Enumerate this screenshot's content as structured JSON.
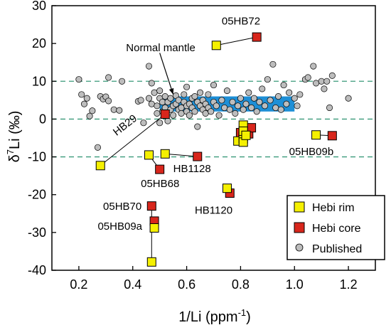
{
  "chart_data": {
    "type": "scatter",
    "xlabel_main": "1/Li (ppm",
    "xlabel_sup": "-1",
    "xlabel_end": ")",
    "ylabel_delta": "δ",
    "ylabel_sup": "7",
    "ylabel_rest": "Li (‰)",
    "xlim": [
      0.1,
      1.3
    ],
    "ylim": [
      -40,
      30
    ],
    "xticks": [
      0.2,
      0.4,
      0.6,
      0.8,
      1.0,
      1.2
    ],
    "xtick_labels": [
      "0.2",
      "0.4",
      "0.6",
      "0.8",
      "1.0",
      "1.2"
    ],
    "yticks": [
      -40,
      -30,
      -20,
      -10,
      0,
      10,
      20,
      30
    ],
    "ytick_labels": [
      "-40",
      "-30",
      "-20",
      "-10",
      "0",
      "10",
      "20",
      "30"
    ],
    "reference_lines_y": [
      10,
      0,
      -10
    ],
    "normal_mantle_band": {
      "x": [
        0.5,
        1.0
      ],
      "y": [
        2,
        6
      ],
      "label": "Normal mantle",
      "color": "#1e8fd6"
    },
    "legend": {
      "placement": "bottom-right",
      "entries": [
        {
          "label": "Hebi rim",
          "marker": "square",
          "color": "#f5f000"
        },
        {
          "label": "Hebi core",
          "marker": "square",
          "color": "#d8261c"
        },
        {
          "label": "Published",
          "marker": "circle",
          "color": "#bdbdbd"
        }
      ]
    },
    "series": [
      {
        "name": "Hebi rim",
        "marker": "square",
        "color": "#f5f000",
        "points": [
          {
            "x": 0.71,
            "y": 19.5
          },
          {
            "x": 0.28,
            "y": -12.3
          },
          {
            "x": 0.46,
            "y": -9.5
          },
          {
            "x": 0.52,
            "y": -9.2
          },
          {
            "x": 0.79,
            "y": -5.8
          },
          {
            "x": 0.81,
            "y": -5.2
          },
          {
            "x": 0.81,
            "y": -6.1
          },
          {
            "x": 0.81,
            "y": -1.6
          },
          {
            "x": 0.81,
            "y": -3.2
          },
          {
            "x": 0.82,
            "y": -4.3
          },
          {
            "x": 1.08,
            "y": -4.2
          },
          {
            "x": 0.75,
            "y": -18.3
          },
          {
            "x": 0.48,
            "y": -28.8
          },
          {
            "x": 0.47,
            "y": -37.8
          }
        ]
      },
      {
        "name": "Hebi core",
        "marker": "square",
        "color": "#d8261c",
        "points": [
          {
            "x": 0.86,
            "y": 21.7
          },
          {
            "x": 0.52,
            "y": 1.3
          },
          {
            "x": 0.64,
            "y": -9.9
          },
          {
            "x": 0.5,
            "y": -13.3
          },
          {
            "x": 0.8,
            "y": -3.6
          },
          {
            "x": 0.81,
            "y": -4.5
          },
          {
            "x": 0.83,
            "y": -3.9
          },
          {
            "x": 0.84,
            "y": -2.3
          },
          {
            "x": 1.14,
            "y": -4.4
          },
          {
            "x": 0.76,
            "y": -19.6
          },
          {
            "x": 0.47,
            "y": -23.0
          },
          {
            "x": 0.48,
            "y": -27.0
          }
        ]
      },
      {
        "name": "Published",
        "marker": "circle",
        "color": "#bdbdbd",
        "points": [
          {
            "x": 0.2,
            "y": 10.5
          },
          {
            "x": 0.21,
            "y": 6.5
          },
          {
            "x": 0.22,
            "y": 4.0
          },
          {
            "x": 0.23,
            "y": 5.5
          },
          {
            "x": 0.24,
            "y": 0.8
          },
          {
            "x": 0.25,
            "y": 2.2
          },
          {
            "x": 0.27,
            "y": -7.5
          },
          {
            "x": 0.28,
            "y": 6.0
          },
          {
            "x": 0.29,
            "y": 5.3
          },
          {
            "x": 0.3,
            "y": 5.9
          },
          {
            "x": 0.31,
            "y": 11.0
          },
          {
            "x": 0.31,
            "y": 4.8
          },
          {
            "x": 0.33,
            "y": 2.5
          },
          {
            "x": 0.35,
            "y": 2.3
          },
          {
            "x": 0.36,
            "y": 10.0
          },
          {
            "x": 0.42,
            "y": 4.7
          },
          {
            "x": 0.43,
            "y": 5.0
          },
          {
            "x": 0.44,
            "y": -1.0
          },
          {
            "x": 0.46,
            "y": 14.0
          },
          {
            "x": 0.46,
            "y": 5.5
          },
          {
            "x": 0.47,
            "y": 4.0
          },
          {
            "x": 0.47,
            "y": 9.5
          },
          {
            "x": 0.48,
            "y": 7.0
          },
          {
            "x": 0.49,
            "y": 3.5
          },
          {
            "x": 0.49,
            "y": 1.5
          },
          {
            "x": 0.5,
            "y": 5.5
          },
          {
            "x": 0.5,
            "y": 7.5
          },
          {
            "x": 0.5,
            "y": -1.0
          },
          {
            "x": 0.51,
            "y": 4.5
          },
          {
            "x": 0.51,
            "y": 2.0
          },
          {
            "x": 0.52,
            "y": 6.0
          },
          {
            "x": 0.52,
            "y": 3.0
          },
          {
            "x": 0.53,
            "y": 4.5
          },
          {
            "x": 0.53,
            "y": -0.5
          },
          {
            "x": 0.54,
            "y": 2.5
          },
          {
            "x": 0.54,
            "y": 5.5
          },
          {
            "x": 0.55,
            "y": 3.5
          },
          {
            "x": 0.55,
            "y": 1.0
          },
          {
            "x": 0.56,
            "y": 4.0
          },
          {
            "x": 0.56,
            "y": 6.2
          },
          {
            "x": 0.57,
            "y": 2.5
          },
          {
            "x": 0.57,
            "y": 5.0
          },
          {
            "x": 0.58,
            "y": 3.0
          },
          {
            "x": 0.58,
            "y": 1.5
          },
          {
            "x": 0.59,
            "y": 4.5
          },
          {
            "x": 0.59,
            "y": 6.5
          },
          {
            "x": 0.6,
            "y": 3.5
          },
          {
            "x": 0.6,
            "y": 2.0
          },
          {
            "x": 0.6,
            "y": 8.5
          },
          {
            "x": 0.61,
            "y": 4.0
          },
          {
            "x": 0.61,
            "y": 1.0
          },
          {
            "x": 0.62,
            "y": 5.5
          },
          {
            "x": 0.62,
            "y": 3.0
          },
          {
            "x": 0.63,
            "y": 2.0
          },
          {
            "x": 0.63,
            "y": 6.0
          },
          {
            "x": 0.64,
            "y": 4.5
          },
          {
            "x": 0.64,
            "y": -2.0
          },
          {
            "x": 0.65,
            "y": 3.5
          },
          {
            "x": 0.65,
            "y": 7.0
          },
          {
            "x": 0.66,
            "y": 2.5
          },
          {
            "x": 0.66,
            "y": 5.0
          },
          {
            "x": 0.67,
            "y": 1.5
          },
          {
            "x": 0.67,
            "y": 4.0
          },
          {
            "x": 0.68,
            "y": 3.0
          },
          {
            "x": 0.68,
            "y": 6.5
          },
          {
            "x": 0.69,
            "y": 2.0
          },
          {
            "x": 0.7,
            "y": 4.5
          },
          {
            "x": 0.7,
            "y": 9.0
          },
          {
            "x": 0.71,
            "y": 3.5
          },
          {
            "x": 0.72,
            "y": 1.0
          },
          {
            "x": 0.73,
            "y": 5.0
          },
          {
            "x": 0.74,
            "y": 3.0
          },
          {
            "x": 0.75,
            "y": 7.5
          },
          {
            "x": 0.76,
            "y": 2.5
          },
          {
            "x": 0.77,
            "y": 4.5
          },
          {
            "x": 0.78,
            "y": 1.5
          },
          {
            "x": 0.79,
            "y": 3.5
          },
          {
            "x": 0.8,
            "y": 5.5
          },
          {
            "x": 0.81,
            "y": 2.5
          },
          {
            "x": 0.82,
            "y": 4.0
          },
          {
            "x": 0.83,
            "y": 7.0
          },
          {
            "x": 0.84,
            "y": 3.0
          },
          {
            "x": 0.85,
            "y": 5.5
          },
          {
            "x": 0.86,
            "y": 2.0
          },
          {
            "x": 0.87,
            "y": 4.5
          },
          {
            "x": 0.88,
            "y": 8.0
          },
          {
            "x": 0.89,
            "y": 3.5
          },
          {
            "x": 0.9,
            "y": 10.5
          },
          {
            "x": 0.91,
            "y": 5.0
          },
          {
            "x": 0.92,
            "y": 14.5
          },
          {
            "x": 0.93,
            "y": 3.0
          },
          {
            "x": 0.94,
            "y": 6.0
          },
          {
            "x": 0.95,
            "y": 2.5
          },
          {
            "x": 0.96,
            "y": 9.0
          },
          {
            "x": 0.97,
            "y": 4.0
          },
          {
            "x": 0.98,
            "y": 7.0
          },
          {
            "x": 1.0,
            "y": 5.5
          },
          {
            "x": 1.01,
            "y": 3.5
          },
          {
            "x": 1.02,
            "y": 6.5
          },
          {
            "x": 1.04,
            "y": 10.5
          },
          {
            "x": 1.05,
            "y": 11.0
          },
          {
            "x": 1.07,
            "y": 14.0
          },
          {
            "x": 1.08,
            "y": 9.5
          },
          {
            "x": 1.1,
            "y": 10.0
          },
          {
            "x": 1.11,
            "y": 8.0
          },
          {
            "x": 1.12,
            "y": 10.0
          },
          {
            "x": 1.13,
            "y": 3.0
          },
          {
            "x": 1.14,
            "y": 11.5
          },
          {
            "x": 1.2,
            "y": 5.5
          }
        ]
      }
    ],
    "connectors": [
      {
        "from": [
          0.71,
          19.5
        ],
        "to": [
          0.86,
          21.7
        ]
      },
      {
        "from": [
          0.28,
          -12.3
        ],
        "to": [
          0.52,
          1.3
        ]
      },
      {
        "from": [
          0.52,
          -9.2
        ],
        "to": [
          0.64,
          -9.9
        ]
      },
      {
        "from": [
          0.46,
          -9.5
        ],
        "to": [
          0.5,
          -13.3
        ]
      },
      {
        "from": [
          1.08,
          -4.2
        ],
        "to": [
          1.14,
          -4.4
        ]
      },
      {
        "from": [
          0.75,
          -18.3
        ],
        "to": [
          0.76,
          -19.6
        ]
      },
      {
        "from": [
          0.47,
          -23.0
        ],
        "to": [
          0.47,
          -37.8
        ]
      },
      {
        "from": [
          0.48,
          -27.0
        ],
        "to": [
          0.48,
          -28.8
        ]
      }
    ],
    "annotations": [
      {
        "text": "05HB72",
        "x": 0.73,
        "y": 25.0
      },
      {
        "text": "Normal mantle",
        "x": 0.375,
        "y": 18.0
      },
      {
        "text": "HB29",
        "x": 0.34,
        "y": -4.5,
        "rotate": -38
      },
      {
        "text": "HB1128",
        "x": 0.55,
        "y": -14.0
      },
      {
        "text": "05HB68",
        "x": 0.43,
        "y": -18.0
      },
      {
        "text": "05HB09b",
        "x": 0.98,
        "y": -9.5
      },
      {
        "text": "HB1120",
        "x": 0.63,
        "y": -25.0
      },
      {
        "text": "05HB70",
        "x": 0.29,
        "y": -24.0
      },
      {
        "text": "05HB09a",
        "x": 0.27,
        "y": -29.3
      }
    ],
    "arrow": {
      "from": [
        0.5,
        17.5
      ],
      "to": [
        0.55,
        6.5
      ]
    }
  }
}
